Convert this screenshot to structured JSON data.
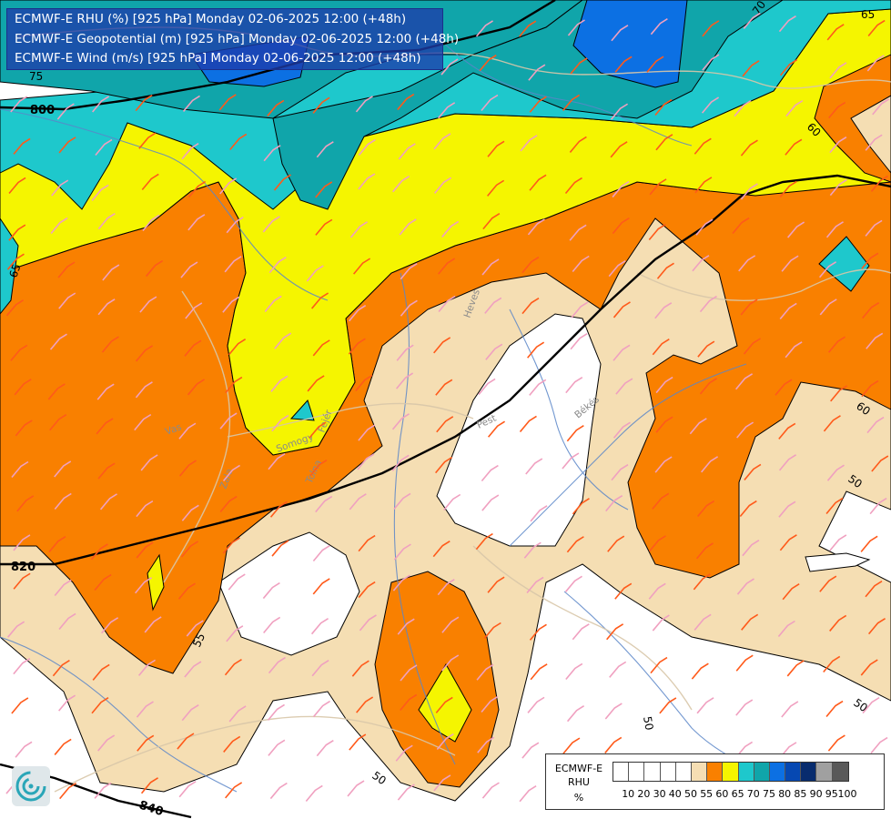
{
  "header": {
    "lines": [
      "ECMWF-E RHU (%) [925 hPa] Monday 02-06-2025 12:00 (+48h)",
      "ECMWF-E Geopotential (m) [925 hPa] Monday 02-06-2025 12:00 (+48h)",
      "ECMWF-E Wind (m/s) [925 hPa] Monday 02-06-2025 12:00 (+48h)"
    ]
  },
  "legend": {
    "model": "ECMWF-E",
    "variable": "RHU",
    "unit": "%",
    "swatch_colors": [
      "#ffffff",
      "#ffffff",
      "#ffffff",
      "#ffffff",
      "#ffffff",
      "#f5deb3",
      "#f98000",
      "#f5f500",
      "#1ec8cc",
      "#10a5aa",
      "#0c70e3",
      "#0648b2",
      "#082c6e",
      "#a0a0a0",
      "#595959"
    ],
    "ticks": [
      "10",
      "20",
      "30",
      "40",
      "50",
      "55",
      "60",
      "65",
      "70",
      "75",
      "80",
      "85",
      "90",
      "95",
      "100"
    ]
  },
  "contour_labels": {
    "rhu": [
      "75",
      "70",
      "65",
      "60",
      "65",
      "60",
      "50",
      "55",
      "50",
      "50",
      "50"
    ],
    "geopotential": [
      "800",
      "820",
      "840"
    ]
  },
  "place_labels": [
    "Vas",
    "Zala",
    "Somogy",
    "Tolna",
    "Fejér",
    "Pest",
    "Békés",
    "Heves"
  ],
  "colors": {
    "rhu_50_55": "#f5deb3",
    "rhu_55_60": "#f98000",
    "rhu_60_65": "#f5f500",
    "rhu_65_70": "#1ec8cc",
    "rhu_70_75": "#10a5aa",
    "rhu_75_80": "#0c70e3",
    "title_bg": "#1e3caa"
  }
}
